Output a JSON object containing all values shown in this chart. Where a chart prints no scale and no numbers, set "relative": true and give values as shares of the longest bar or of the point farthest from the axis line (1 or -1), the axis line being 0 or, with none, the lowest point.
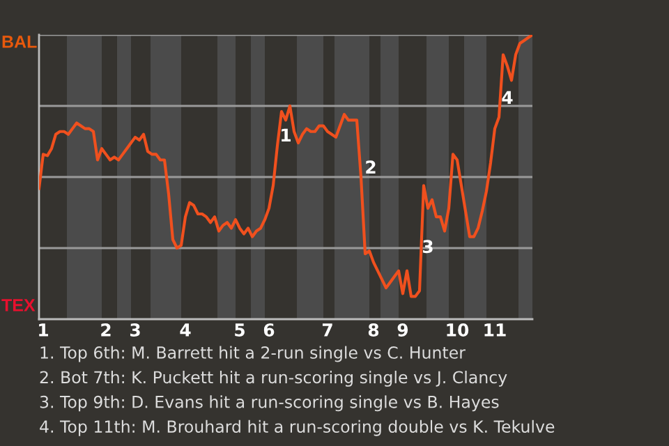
{
  "chart_data": {
    "type": "line",
    "relative": true,
    "categories": [
      null,
      "1",
      null,
      null,
      null,
      null,
      null,
      null,
      null,
      null,
      null,
      null,
      null,
      null,
      null,
      null,
      "2",
      null,
      null,
      null,
      null,
      null,
      null,
      "3",
      null,
      null,
      null,
      null,
      null,
      null,
      null,
      null,
      null,
      null,
      null,
      "4",
      null,
      null,
      null,
      null,
      null,
      null,
      null,
      null,
      null,
      null,
      null,
      null,
      "5",
      null,
      null,
      null,
      null,
      null,
      null,
      "6",
      null,
      null,
      null,
      null,
      null,
      null,
      null,
      null,
      null,
      null,
      null,
      null,
      null,
      "7",
      null,
      null,
      null,
      null,
      null,
      null,
      null,
      null,
      null,
      null,
      "8",
      null,
      null,
      null,
      null,
      null,
      null,
      "9",
      null,
      null,
      null,
      null,
      null,
      null,
      null,
      null,
      null,
      null,
      null,
      null,
      "10",
      null,
      null,
      null,
      null,
      null,
      null,
      null,
      null,
      "11",
      null,
      null,
      null,
      null,
      null,
      null,
      null,
      null,
      null
    ],
    "series": [
      {
        "color": "#f0501e",
        "values": [
          0.46,
          0.58,
          0.575,
          0.6,
          0.65,
          0.66,
          0.66,
          0.65,
          0.67,
          0.69,
          0.68,
          0.67,
          0.67,
          0.66,
          0.56,
          0.6,
          0.58,
          0.56,
          0.57,
          0.56,
          0.58,
          0.6,
          0.62,
          0.64,
          0.63,
          0.65,
          0.59,
          0.58,
          0.58,
          0.56,
          0.56,
          0.44,
          0.28,
          0.25,
          0.26,
          0.36,
          0.41,
          0.4,
          0.37,
          0.37,
          0.36,
          0.34,
          0.36,
          0.31,
          0.33,
          0.34,
          0.32,
          0.35,
          0.32,
          0.3,
          0.32,
          0.29,
          0.31,
          0.32,
          0.35,
          0.39,
          0.47,
          0.61,
          0.73,
          0.7,
          0.75,
          0.66,
          0.62,
          0.65,
          0.67,
          0.66,
          0.66,
          0.68,
          0.68,
          0.66,
          0.65,
          0.64,
          0.68,
          0.72,
          0.7,
          0.7,
          0.7,
          0.5,
          0.23,
          0.24,
          0.2,
          0.17,
          0.14,
          0.11,
          0.13,
          0.15,
          0.17,
          0.09,
          0.17,
          0.08,
          0.08,
          0.1,
          0.47,
          0.39,
          0.42,
          0.36,
          0.36,
          0.31,
          0.39,
          0.58,
          0.56,
          0.47,
          0.38,
          0.29,
          0.29,
          0.32,
          0.38,
          0.45,
          0.55,
          0.67,
          0.71,
          0.93,
          0.89,
          0.84,
          0.93,
          0.97,
          0.98,
          0.99,
          1.0
        ],
        "line_style": "solid"
      }
    ],
    "ref_lines": [
      {
        "axis": "y",
        "value": 0.25,
        "color": "#9a9a9a"
      },
      {
        "axis": "y",
        "value": 0.5,
        "color": "#9a9a9a"
      },
      {
        "axis": "y",
        "value": 0.75,
        "color": "#9a9a9a"
      },
      {
        "axis": "y",
        "value": 1.0,
        "color": "#9a9a9a"
      }
    ],
    "annotations": [
      "BAL",
      "TEX",
      "1",
      "2",
      "3",
      "4",
      "1. Top 6th: M. Barrett hit a 2-run single vs C. Hunter",
      "2. Bot 7th: K. Puckett hit a run-scoring single vs J. Clancy",
      "3. Top 9th: D. Evans hit a run-scoring single vs B. Hayes",
      "4. Top 11th: M. Brouhard hit a run-scoring double vs K. Tekulve"
    ]
  }
}
